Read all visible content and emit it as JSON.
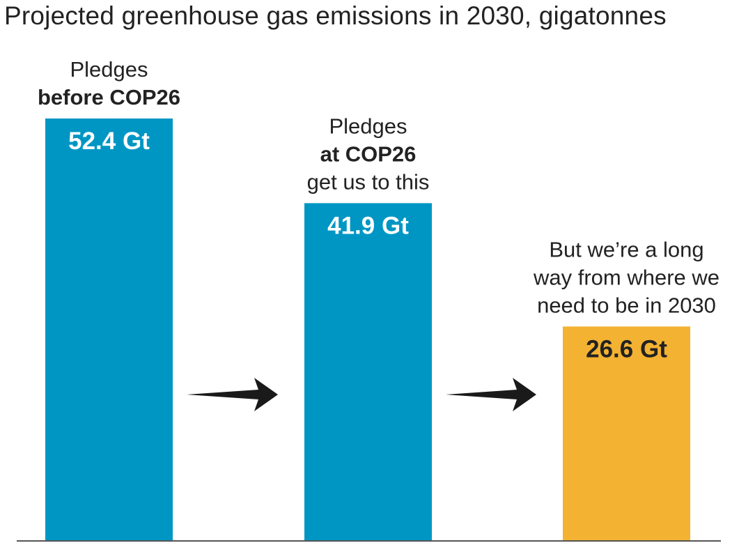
{
  "chart_data": {
    "type": "bar",
    "title": "Projected greenhouse gas emissions in 2030, gigatonnes",
    "xlabel": "",
    "ylabel": "",
    "ylim": [
      0,
      52.4
    ],
    "grid": false,
    "legend": "none",
    "categories": [
      {
        "lines": [
          {
            "text": "Pledges",
            "bold": false
          },
          {
            "text": "before COP26",
            "bold": true
          }
        ]
      },
      {
        "lines": [
          {
            "text": "Pledges",
            "bold": false
          },
          {
            "text": "at COP26",
            "bold": true
          },
          {
            "text": "get us to this",
            "bold": false
          }
        ]
      },
      {
        "lines": [
          {
            "text": "But we’re a long",
            "bold": false
          },
          {
            "text": "way from where we",
            "bold": false
          },
          {
            "text": "need to be in 2030",
            "bold": false
          }
        ]
      }
    ],
    "values": [
      52.4,
      41.9,
      26.6
    ],
    "value_labels": [
      "52.4 Gt",
      "41.9 Gt",
      "26.6 Gt"
    ],
    "unit": "Gt",
    "colors": {
      "bars": [
        "#0096c4",
        "#0096c4",
        "#f3b231"
      ],
      "value_text": [
        "#ffffff",
        "#ffffff",
        "#222222"
      ],
      "arrow": "#1a1a1a",
      "axis": "#555555"
    },
    "annotations": [
      "arrow-between-bars-1-2",
      "arrow-between-bars-2-3"
    ]
  }
}
